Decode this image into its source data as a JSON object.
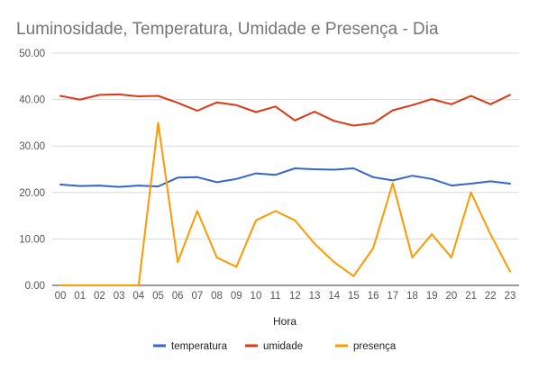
{
  "chart_data": {
    "type": "line",
    "title": "Luminosidade, Temperatura, Umidade e Presença - Dia",
    "xlabel": "Hora",
    "ylabel": "",
    "ylim": [
      0,
      50
    ],
    "yticks": [
      "0.00",
      "10.00",
      "20.00",
      "30.00",
      "40.00",
      "50.00"
    ],
    "ytick_values": [
      0,
      10,
      20,
      30,
      40,
      50
    ],
    "grid": true,
    "legend_position": "bottom",
    "x": [
      "00",
      "01",
      "02",
      "03",
      "04",
      "05",
      "06",
      "07",
      "08",
      "09",
      "10",
      "11",
      "12",
      "13",
      "14",
      "15",
      "16",
      "17",
      "18",
      "19",
      "20",
      "21",
      "22",
      "23"
    ],
    "series": [
      {
        "name": "temperatura",
        "color": "#3366cc",
        "values": [
          21.7,
          21.4,
          21.5,
          21.2,
          21.5,
          21.3,
          23.2,
          23.3,
          22.2,
          22.9,
          24.1,
          23.8,
          25.2,
          25.0,
          24.9,
          25.2,
          23.3,
          22.6,
          23.6,
          22.9,
          21.5,
          21.9,
          22.4,
          21.9
        ]
      },
      {
        "name": "umidade",
        "color": "#dc3912",
        "values": [
          40.8,
          40.0,
          41.0,
          41.1,
          40.7,
          40.8,
          39.3,
          37.6,
          39.4,
          38.8,
          37.3,
          38.5,
          35.5,
          37.4,
          35.4,
          34.4,
          34.9,
          37.7,
          38.8,
          40.1,
          39.0,
          40.8,
          39.0,
          41.0
        ]
      },
      {
        "name": "presença",
        "color": "#ff9900",
        "values": [
          0,
          0,
          0,
          0,
          0,
          35,
          5,
          16,
          6,
          4,
          14,
          16,
          14,
          9,
          5,
          2,
          8,
          22,
          6,
          11,
          6,
          20,
          11,
          3
        ]
      }
    ]
  }
}
